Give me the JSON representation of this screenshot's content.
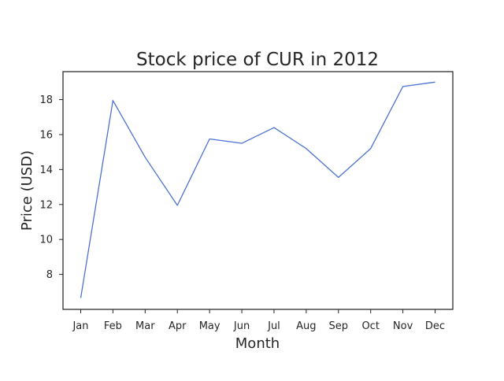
{
  "chart_data": {
    "type": "line",
    "title": "Stock price of CUR in 2012",
    "xlabel": "Month",
    "ylabel": "Price (USD)",
    "categories": [
      "Jan",
      "Feb",
      "Mar",
      "Apr",
      "May",
      "Jun",
      "Jul",
      "Aug",
      "Sep",
      "Oct",
      "Nov",
      "Dec"
    ],
    "series": [
      {
        "values": [
          6.65,
          17.95,
          14.7,
          11.95,
          15.75,
          15.5,
          16.4,
          15.2,
          13.55,
          15.2,
          18.75,
          19.0
        ],
        "color": "#4c72d0"
      }
    ],
    "yticks": [
      8,
      10,
      12,
      14,
      16,
      18
    ],
    "ylim": [
      6.0,
      19.6
    ],
    "grid": false,
    "legend": "none"
  }
}
